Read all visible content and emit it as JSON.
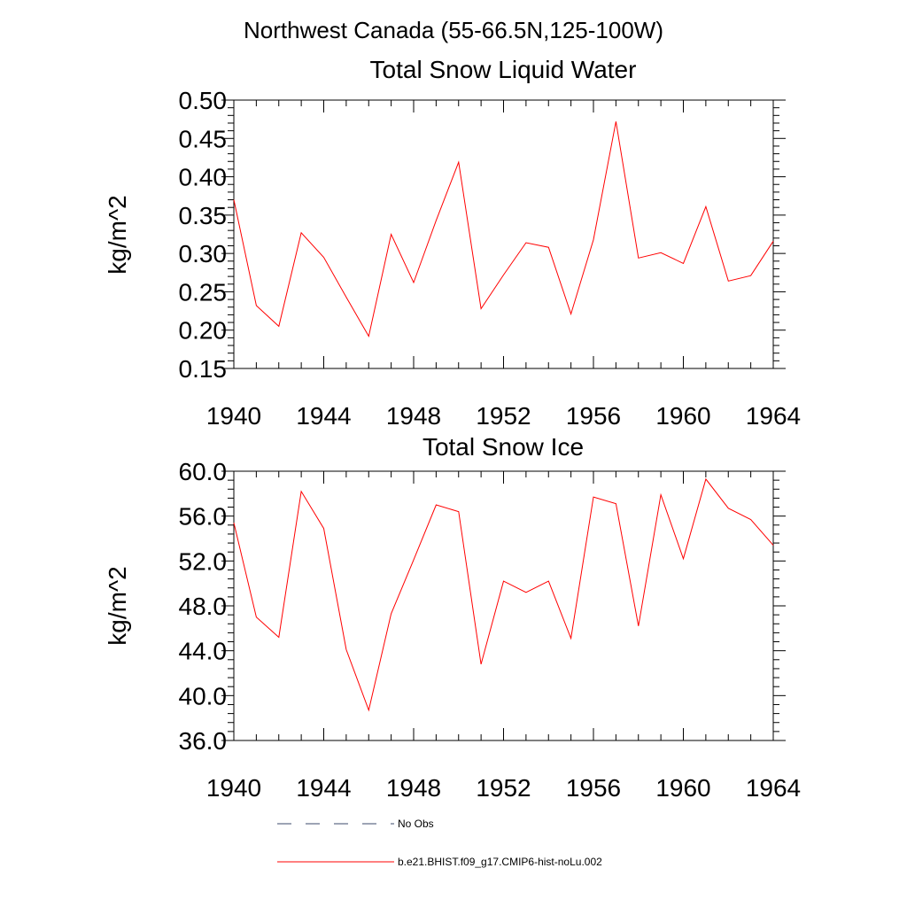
{
  "main_title": "Northwest Canada (55-66.5N,125-100W)",
  "chart_data": [
    {
      "type": "line",
      "title": "Total Snow Liquid Water",
      "xlabel": "",
      "ylabel": "kg/m^2",
      "xlim": [
        1940,
        1964
      ],
      "ylim": [
        0.15,
        0.5
      ],
      "x_ticks": [
        "1940",
        "1944",
        "1948",
        "1952",
        "1956",
        "1960",
        "1964"
      ],
      "y_ticks": [
        "0.15",
        "0.20",
        "0.25",
        "0.30",
        "0.35",
        "0.40",
        "0.45",
        "0.50"
      ],
      "grid": false,
      "x": [
        1940,
        1941,
        1942,
        1943,
        1944,
        1945,
        1946,
        1947,
        1948,
        1949,
        1950,
        1951,
        1952,
        1953,
        1954,
        1955,
        1956,
        1957,
        1958,
        1959,
        1960,
        1961,
        1962,
        1963,
        1964
      ],
      "series": [
        {
          "name": "b.e21.BHIST.f09_g17.CMIP6-hist-noLu.002",
          "color": "#ff0000",
          "values": [
            0.37,
            0.232,
            0.205,
            0.327,
            0.295,
            0.243,
            0.192,
            0.325,
            0.262,
            0.343,
            0.419,
            0.228,
            0.272,
            0.314,
            0.308,
            0.221,
            0.318,
            0.472,
            0.294,
            0.301,
            0.287,
            0.361,
            0.264,
            0.271,
            0.316
          ]
        }
      ]
    },
    {
      "type": "line",
      "title": "Total Snow Ice",
      "xlabel": "",
      "ylabel": "kg/m^2",
      "xlim": [
        1940,
        1964
      ],
      "ylim": [
        36.0,
        60.0
      ],
      "x_ticks": [
        "1940",
        "1944",
        "1948",
        "1952",
        "1956",
        "1960",
        "1964"
      ],
      "y_ticks": [
        "36.0",
        "40.0",
        "44.0",
        "48.0",
        "52.0",
        "56.0",
        "60.0"
      ],
      "grid": false,
      "x": [
        1940,
        1941,
        1942,
        1943,
        1944,
        1945,
        1946,
        1947,
        1948,
        1949,
        1950,
        1951,
        1952,
        1953,
        1954,
        1955,
        1956,
        1957,
        1958,
        1959,
        1960,
        1961,
        1962,
        1963,
        1964
      ],
      "series": [
        {
          "name": "b.e21.BHIST.f09_g17.CMIP6-hist-noLu.002",
          "color": "#ff0000",
          "values": [
            55.4,
            47.0,
            45.2,
            58.2,
            54.9,
            44.1,
            38.7,
            47.3,
            52.1,
            57.0,
            56.4,
            42.8,
            50.2,
            49.2,
            50.2,
            45.1,
            57.7,
            57.1,
            46.2,
            57.9,
            52.2,
            59.3,
            56.7,
            55.7,
            53.4
          ]
        }
      ]
    }
  ],
  "legend": [
    {
      "label": "No Obs",
      "style": "dashed",
      "color": "#3b4a6b"
    },
    {
      "label": "b.e21.BHIST.f09_g17.CMIP6-hist-noLu.002",
      "style": "solid",
      "color": "#ff0000"
    }
  ]
}
